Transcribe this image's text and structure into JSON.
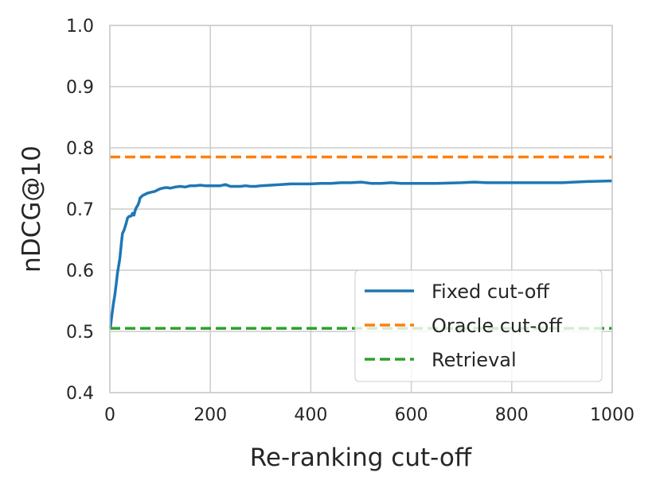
{
  "chart_data": {
    "type": "line",
    "title": "",
    "xlabel": "Re-ranking cut-off",
    "ylabel": "nDCG@10",
    "xlim": [
      0,
      1000
    ],
    "ylim": [
      0.4,
      1.0
    ],
    "xticks": [
      0,
      200,
      400,
      600,
      800,
      1000
    ],
    "xtick_labels": [
      "0",
      "200",
      "400",
      "600",
      "800",
      "1000"
    ],
    "yticks": [
      0.4,
      0.5,
      0.6,
      0.7,
      0.8,
      0.9,
      1.0
    ],
    "ytick_labels": [
      "0.4",
      "0.5",
      "0.6",
      "0.7",
      "0.8",
      "0.9",
      "1.0"
    ],
    "grid": true,
    "legend_position": "lower-right",
    "series": [
      {
        "name": "Fixed cut-off",
        "style": "solid",
        "color": "#1f77b4",
        "x": [
          1,
          3,
          5,
          7,
          10,
          13,
          15,
          18,
          20,
          23,
          25,
          28,
          30,
          33,
          35,
          38,
          40,
          43,
          45,
          48,
          50,
          53,
          55,
          58,
          60,
          65,
          70,
          75,
          80,
          85,
          90,
          95,
          100,
          105,
          110,
          115,
          120,
          130,
          140,
          150,
          160,
          170,
          180,
          190,
          200,
          210,
          220,
          230,
          240,
          250,
          260,
          270,
          280,
          290,
          300,
          320,
          340,
          360,
          380,
          400,
          420,
          440,
          460,
          480,
          500,
          520,
          540,
          560,
          580,
          600,
          650,
          700,
          725,
          750,
          800,
          850,
          900,
          950,
          1000
        ],
        "y": [
          0.505,
          0.52,
          0.533,
          0.545,
          0.56,
          0.58,
          0.595,
          0.61,
          0.62,
          0.645,
          0.66,
          0.665,
          0.67,
          0.678,
          0.685,
          0.688,
          0.688,
          0.689,
          0.693,
          0.69,
          0.697,
          0.703,
          0.705,
          0.711,
          0.718,
          0.722,
          0.724,
          0.726,
          0.727,
          0.728,
          0.729,
          0.731,
          0.733,
          0.734,
          0.735,
          0.735,
          0.734,
          0.736,
          0.737,
          0.736,
          0.738,
          0.738,
          0.739,
          0.738,
          0.738,
          0.738,
          0.738,
          0.74,
          0.737,
          0.737,
          0.737,
          0.738,
          0.737,
          0.737,
          0.738,
          0.739,
          0.74,
          0.741,
          0.741,
          0.741,
          0.742,
          0.742,
          0.743,
          0.743,
          0.744,
          0.742,
          0.742,
          0.743,
          0.742,
          0.742,
          0.742,
          0.743,
          0.744,
          0.743,
          0.743,
          0.743,
          0.743,
          0.745,
          0.746
        ]
      },
      {
        "name": "Oracle cut-off",
        "style": "dashed",
        "color": "#ff7f0e",
        "x": [
          0,
          1000
        ],
        "y": [
          0.785,
          0.785
        ]
      },
      {
        "name": "Retrieval",
        "style": "dashed",
        "color": "#2ca02c",
        "x": [
          0,
          1000
        ],
        "y": [
          0.505,
          0.505
        ]
      }
    ]
  }
}
